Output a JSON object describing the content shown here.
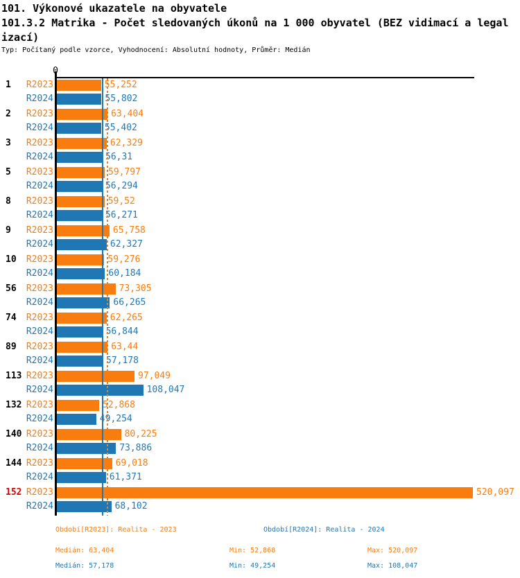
{
  "header": {
    "title": "101. Výkonové ukazatele na obyvatele",
    "subtitle_line1": "101.3.2 Matrika - Počet sledovaných úkonů na 1 000 obyvatel (BEZ vidimací a legal",
    "subtitle_line2": "izací)",
    "meta": "Typ: Počítaný podle vzorce, Vyhodnocení: Absolutní hodnoty, Průměr: Medián"
  },
  "chart_data": {
    "type": "bar",
    "orientation": "horizontal-grouped",
    "zero_label": "0",
    "x_max": 520.097,
    "grid": false,
    "highlight_category": "152",
    "series": [
      {
        "name": "R2023",
        "color": "#f97d0e",
        "median": 63.404,
        "median_line_style": "dashed"
      },
      {
        "name": "R2024",
        "color": "#1f77b4",
        "median": 57.178,
        "median_line_style": "solid"
      }
    ],
    "rows": [
      {
        "category": "1",
        "r2023": 55.252,
        "r2023_label": "55,252",
        "r2024": 55.802,
        "r2024_label": "55,802"
      },
      {
        "category": "2",
        "r2023": 63.404,
        "r2023_label": "63,404",
        "r2024": 55.402,
        "r2024_label": "55,402"
      },
      {
        "category": "3",
        "r2023": 62.329,
        "r2023_label": "62,329",
        "r2024": 56.31,
        "r2024_label": "56,31"
      },
      {
        "category": "5",
        "r2023": 59.797,
        "r2023_label": "59,797",
        "r2024": 56.294,
        "r2024_label": "56,294"
      },
      {
        "category": "8",
        "r2023": 59.52,
        "r2023_label": "59,52",
        "r2024": 56.271,
        "r2024_label": "56,271"
      },
      {
        "category": "9",
        "r2023": 65.758,
        "r2023_label": "65,758",
        "r2024": 62.327,
        "r2024_label": "62,327"
      },
      {
        "category": "10",
        "r2023": 59.276,
        "r2023_label": "59,276",
        "r2024": 60.184,
        "r2024_label": "60,184"
      },
      {
        "category": "56",
        "r2023": 73.305,
        "r2023_label": "73,305",
        "r2024": 66.265,
        "r2024_label": "66,265"
      },
      {
        "category": "74",
        "r2023": 62.265,
        "r2023_label": "62,265",
        "r2024": 56.844,
        "r2024_label": "56,844"
      },
      {
        "category": "89",
        "r2023": 63.44,
        "r2023_label": "63,44",
        "r2024": 57.178,
        "r2024_label": "57,178"
      },
      {
        "category": "113",
        "r2023": 97.049,
        "r2023_label": "97,049",
        "r2024": 108.047,
        "r2024_label": "108,047"
      },
      {
        "category": "132",
        "r2023": 52.868,
        "r2023_label": "52,868",
        "r2024": 49.254,
        "r2024_label": "49,254"
      },
      {
        "category": "140",
        "r2023": 80.225,
        "r2023_label": "80,225",
        "r2024": 73.886,
        "r2024_label": "73,886"
      },
      {
        "category": "144",
        "r2023": 69.018,
        "r2023_label": "69,018",
        "r2024": 61.371,
        "r2024_label": "61,371"
      },
      {
        "category": "152",
        "r2023": 520.097,
        "r2023_label": "520,097",
        "r2024": 68.102,
        "r2024_label": "68,102"
      }
    ]
  },
  "footer": {
    "legend_r2023": "Období[R2023]: Realita - 2023",
    "legend_r2024": "Období[R2024]: Realita - 2024",
    "stats_r2023": {
      "median": "Medián: 63,404",
      "min": "Min: 52,868",
      "max": "Max: 520,097"
    },
    "stats_r2024": {
      "median": "Medián: 57,178",
      "min": "Min: 49,254",
      "max": "Max: 108,047"
    }
  },
  "colors": {
    "orange": "#f97d0e",
    "blue": "#1f77b4",
    "highlight_red": "#e00000",
    "axis_black": "#000000"
  }
}
